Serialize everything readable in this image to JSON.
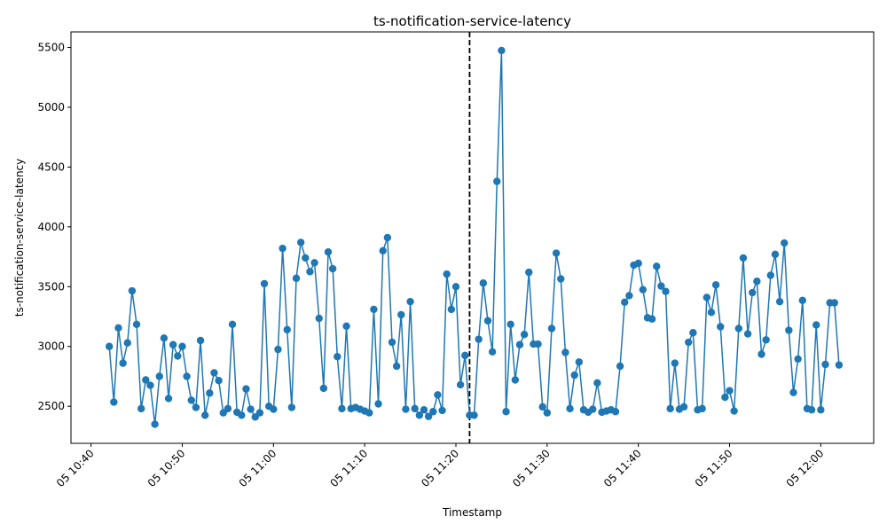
{
  "chart_data": {
    "type": "line",
    "title": "ts-notification-service-latency",
    "xlabel": "Timestamp",
    "ylabel": "ts-notification-service-latency",
    "ylim": [
      2190,
      5630
    ],
    "y_ticks": [
      2500,
      3000,
      3500,
      4000,
      4500,
      5000,
      5500
    ],
    "x_ticks": [
      {
        "minute": 0,
        "label": "05 10:40"
      },
      {
        "minute": 10,
        "label": "05 10:50"
      },
      {
        "minute": 20,
        "label": "05 11:00"
      },
      {
        "minute": 30,
        "label": "05 11:10"
      },
      {
        "minute": 40,
        "label": "05 11:20"
      },
      {
        "minute": 50,
        "label": "05 11:30"
      },
      {
        "minute": 60,
        "label": "05 11:40"
      },
      {
        "minute": 70,
        "label": "05 11:50"
      },
      {
        "minute": 80,
        "label": "05 12:00"
      }
    ],
    "xlim_minutes": [
      -2.2,
      85.8
    ],
    "x_start_minute": 2,
    "x_step_minutes": 0.5,
    "vline_minute": 41.5,
    "colors": {
      "line": "#1f77b4",
      "marker": "#1f77b4",
      "vline": "#000000"
    },
    "series": [
      {
        "name": "",
        "values": [
          3000,
          2535,
          3155,
          2860,
          3030,
          3465,
          3185,
          2480,
          2720,
          2675,
          2350,
          2750,
          3070,
          2565,
          3015,
          2920,
          3000,
          2750,
          2550,
          2490,
          3050,
          2425,
          2610,
          2780,
          2715,
          2445,
          2480,
          3185,
          2450,
          2425,
          2645,
          2475,
          2410,
          2445,
          3525,
          2500,
          2475,
          2975,
          3820,
          3140,
          2490,
          3570,
          3870,
          3740,
          3625,
          3700,
          3235,
          2650,
          3790,
          3650,
          2915,
          2480,
          3170,
          2480,
          2490,
          2475,
          2460,
          2445,
          3310,
          2520,
          3800,
          3910,
          3035,
          2835,
          3265,
          2475,
          3375,
          2480,
          2425,
          2470,
          2415,
          2455,
          2595,
          2465,
          3605,
          3310,
          3500,
          2680,
          2925,
          2425,
          2425,
          3060,
          3530,
          3215,
          2955,
          4380,
          5475,
          2455,
          3185,
          2720,
          3015,
          3100,
          3620,
          3020,
          3020,
          2495,
          2445,
          3150,
          3780,
          3565,
          2950,
          2480,
          2760,
          2870,
          2470,
          2450,
          2475,
          2695,
          2450,
          2460,
          2470,
          2455,
          2835,
          3370,
          3425,
          3680,
          3695,
          3475,
          3240,
          3230,
          3670,
          3505,
          3460,
          2480,
          2860,
          2475,
          2495,
          3035,
          3115,
          2470,
          2480,
          3410,
          3285,
          3515,
          3165,
          2575,
          2630,
          2460,
          3150,
          3740,
          3105,
          3450,
          3545,
          2935,
          3055,
          3595,
          3770,
          3375,
          3865,
          3135,
          2615,
          2895,
          3385,
          2480,
          2470,
          3180,
          2470,
          2850,
          3365,
          3365,
          2845
        ]
      }
    ]
  }
}
